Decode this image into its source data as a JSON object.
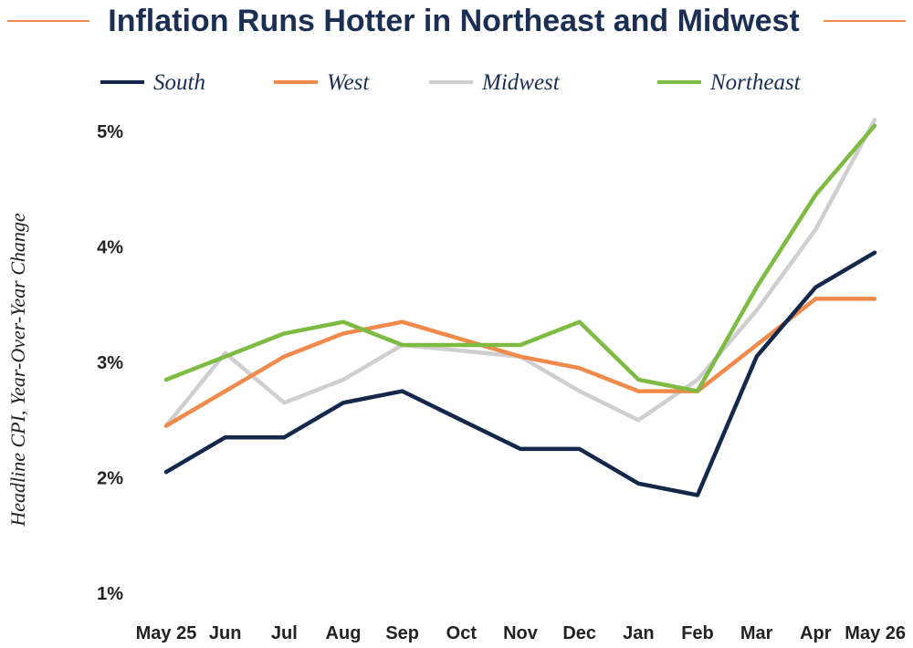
{
  "chart_data": {
    "type": "line",
    "title": "Inflation Runs Hotter in Northeast and Midwest",
    "xlabel": "",
    "ylabel": "Headline CPI, Year-Over-Year Change",
    "categories": [
      "May 25",
      "Jun",
      "Jul",
      "Aug",
      "Sep",
      "Oct",
      "Nov",
      "Dec",
      "Jan",
      "Feb",
      "Mar",
      "Apr",
      "May 26"
    ],
    "ylim": [
      1,
      5
    ],
    "yticks": [
      "1%",
      "2%",
      "3%",
      "4%",
      "5%"
    ],
    "grid": false,
    "legend_position": "top",
    "series": [
      {
        "name": "South",
        "color": "#14284b",
        "values": [
          2.05,
          2.35,
          2.35,
          2.65,
          2.75,
          2.5,
          2.25,
          2.25,
          1.95,
          1.85,
          3.05,
          3.65,
          3.95
        ]
      },
      {
        "name": "West",
        "color": "#f08a4b",
        "values": [
          2.45,
          2.75,
          3.05,
          3.25,
          3.35,
          3.2,
          3.05,
          2.95,
          2.75,
          2.75,
          3.15,
          3.55,
          3.55
        ]
      },
      {
        "name": "Midwest",
        "color": "#cfcfcf",
        "values": [
          2.45,
          3.08,
          2.65,
          2.85,
          3.15,
          3.1,
          3.05,
          2.75,
          2.5,
          2.85,
          3.45,
          4.15,
          5.1
        ]
      },
      {
        "name": "Northeast",
        "color": "#7dbb42",
        "values": [
          2.85,
          3.05,
          3.25,
          3.35,
          3.15,
          3.15,
          3.15,
          3.35,
          2.85,
          2.75,
          3.65,
          4.45,
          5.05
        ]
      }
    ]
  }
}
